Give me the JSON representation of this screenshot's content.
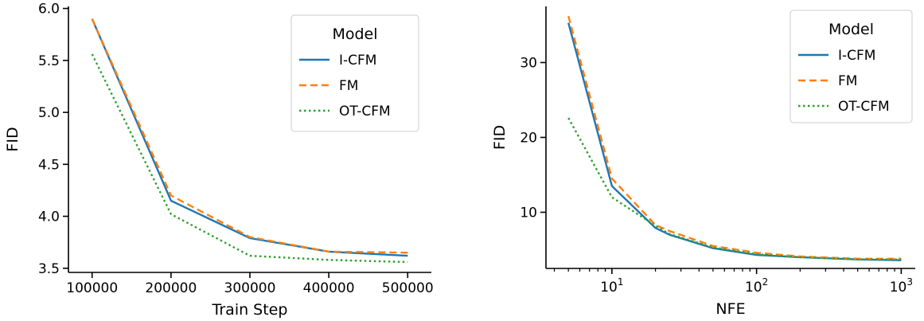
{
  "chart_data": [
    {
      "type": "line",
      "xlabel": "Train Step",
      "ylabel": "FID",
      "x": [
        100000,
        200000,
        300000,
        400000,
        500000
      ],
      "xticks": [
        100000,
        200000,
        300000,
        400000,
        500000
      ],
      "xtick_labels": [
        "100000",
        "200000",
        "300000",
        "400000",
        "500000"
      ],
      "yticks": [
        3.5,
        4.0,
        4.5,
        5.0,
        5.5,
        6.0
      ],
      "ytick_labels": [
        "3.5",
        "4.0",
        "4.5",
        "5.0",
        "5.5",
        "6.0"
      ],
      "xlim": [
        70000,
        530000
      ],
      "ylim": [
        3.46,
        6.02
      ],
      "xscale": "linear",
      "grid": false,
      "legend": {
        "title": "Model",
        "placement": "top-right"
      },
      "series": [
        {
          "name": "I-CFM",
          "color": "#1f77b4",
          "dash": "solid",
          "values": [
            5.9,
            4.15,
            3.79,
            3.66,
            3.62
          ]
        },
        {
          "name": "FM",
          "color": "#ff7f0e",
          "dash": "dashed",
          "values": [
            5.9,
            4.2,
            3.8,
            3.66,
            3.65
          ]
        },
        {
          "name": "OT-CFM",
          "color": "#2ca02c",
          "dash": "dotted",
          "values": [
            5.56,
            4.02,
            3.62,
            3.58,
            3.56
          ]
        }
      ]
    },
    {
      "type": "line",
      "xlabel": "NFE",
      "ylabel": "FID",
      "x": [
        5,
        10,
        20,
        25,
        50,
        100,
        200,
        500,
        1000
      ],
      "xscale": "log",
      "xticks": [
        10,
        100,
        1000
      ],
      "xtick_labels": [
        {
          "base": "10",
          "exp": "1"
        },
        {
          "base": "10",
          "exp": "2"
        },
        {
          "base": "10",
          "exp": "3"
        }
      ],
      "yticks": [
        10,
        20,
        30
      ],
      "ytick_labels": [
        "10",
        "20",
        "30"
      ],
      "xlim": [
        3.5,
        1250
      ],
      "ylim": [
        2.5,
        37.5
      ],
      "grid": false,
      "legend": {
        "title": "Model",
        "placement": "top-right"
      },
      "series": [
        {
          "name": "I-CFM",
          "color": "#1f77b4",
          "dash": "solid",
          "values": [
            35.3,
            13.5,
            7.9,
            7.0,
            5.2,
            4.3,
            4.0,
            3.7,
            3.6
          ]
        },
        {
          "name": "FM",
          "color": "#ff7f0e",
          "dash": "dashed",
          "values": [
            36.2,
            14.5,
            8.3,
            7.5,
            5.5,
            4.6,
            4.1,
            3.8,
            3.8
          ]
        },
        {
          "name": "OT-CFM",
          "color": "#2ca02c",
          "dash": "dotted",
          "values": [
            22.6,
            12.0,
            8.2,
            7.1,
            5.3,
            4.4,
            4.0,
            3.7,
            3.7
          ]
        }
      ]
    }
  ]
}
